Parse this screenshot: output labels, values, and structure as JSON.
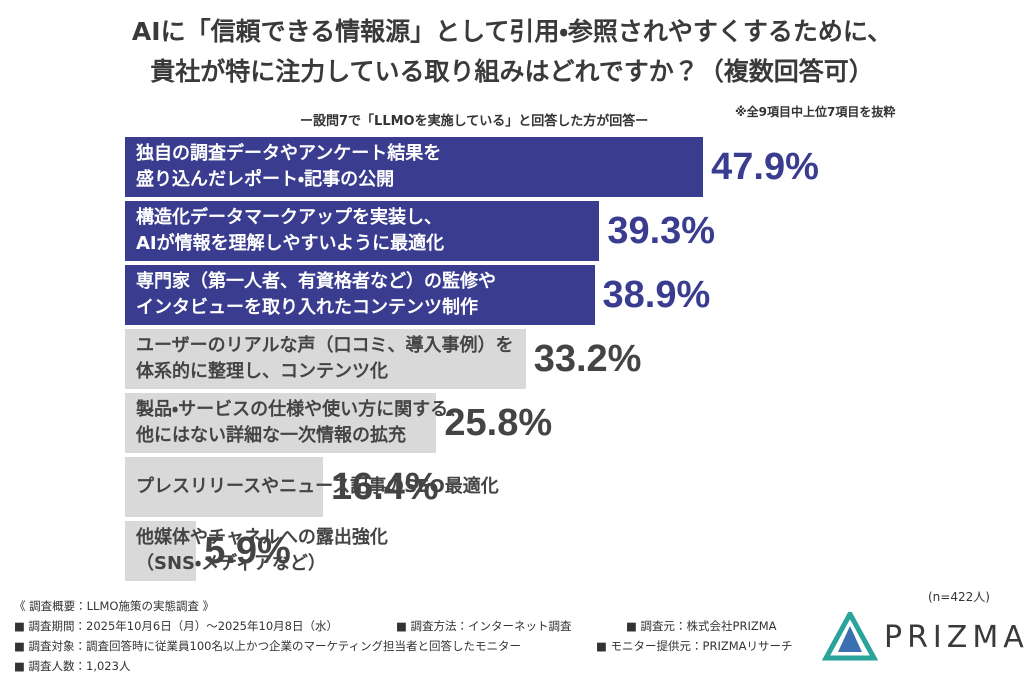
{
  "chart_data": {
    "type": "hbar",
    "title": "AIに「信頼できる情報源」として引用・参照されやすくするために、\n貴社が特に注力している取り組みはどれですか？（複数回答可）",
    "subtitle": "ー設問7で「LLMOを実施している」と回答した方が回答ー",
    "note": "※全9項目中上位7項目を抜粋",
    "sample_size": "(n=422人)",
    "categories": [
      "独自の調査データやアンケート結果を\n盛り込んだレポート・記事の公開",
      "構造化データマークアップを実装し、\nAIが情報を理解しやすいように最適化",
      "専門家（第一人者、有資格者など）の監修や\nインタビューを取り入れたコンテンツ制作",
      "ユーザーのリアルな声（口コミ、導入事例）を\n体系的に整理し、コンテンツ化",
      "製品・サービスの仕様や使い方に関する、\n他にはない詳細な一次情報の拡充",
      "プレスリリースやニュース記事のSEO最適化",
      "他媒体やチャネルへの露出強化\n（SNS・メディアなど）"
    ],
    "values": [
      47.9,
      39.3,
      38.9,
      33.2,
      25.8,
      16.4,
      5.9
    ],
    "value_labels": [
      "47.9%",
      "39.3%",
      "38.9%",
      "33.2%",
      "25.8%",
      "16.4%",
      "5.9%"
    ],
    "colors": [
      "#3a3d8f",
      "#3a3d8f",
      "#3a3d8f",
      "#d9d9d9",
      "#d9d9d9",
      "#d9d9d9",
      "#d9d9d9"
    ],
    "text_colors": [
      "#ffffff",
      "#ffffff",
      "#ffffff",
      "#444444",
      "#444444",
      "#444444",
      "#444444"
    ],
    "label_colors": [
      "#3a3d8f",
      "#3a3d8f",
      "#3a3d8f",
      "#444444",
      "#444444",
      "#444444",
      "#444444"
    ]
  },
  "footer": {
    "heading": "《 調査概要：LLMO施策の実態調査 》",
    "rows": [
      [
        "■ 調査期間：2025年10月6日（月）～2025年10月8日（水）",
        "■ 調査方法：インターネット調査",
        "■ 調査元：株式会社PRIZMA"
      ],
      [
        "■ 調査対象：調査回答時に従業員100名以上かつ企業のマーケティング担当者と回答したモニター",
        "■ モニター提供元：PRIZMAリサーチ"
      ],
      [
        "■ 調査人数：1,023人"
      ]
    ],
    "logo": "PRIZMA"
  }
}
